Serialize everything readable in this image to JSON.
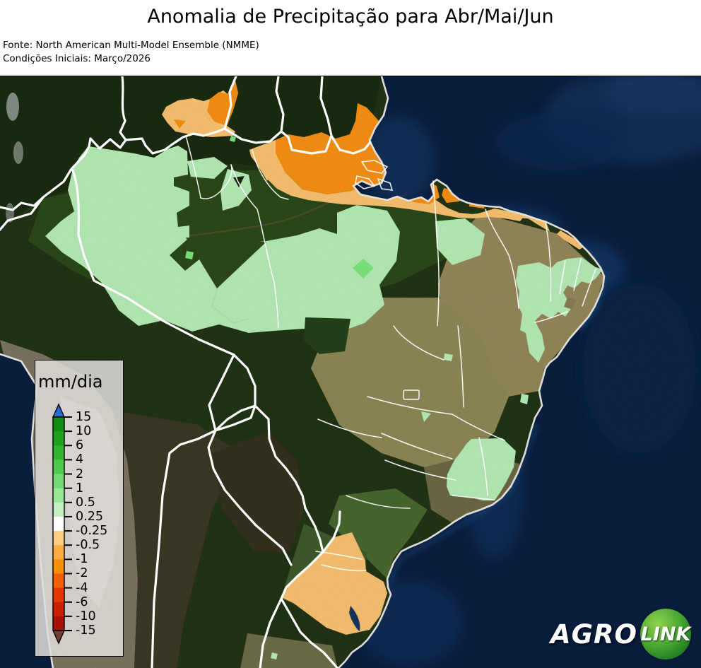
{
  "header": {
    "title": "Anomalia de Precipitação para Abr/Mai/Jun",
    "source_line1": "Fonte: North American Multi-Model Ensemble (NMME)",
    "source_line2": "Condições Iniciais: Março/2026"
  },
  "legend": {
    "unit_label": "mm/dia",
    "tick_labels": [
      "15",
      "10",
      "6",
      "4",
      "2",
      "1",
      "0.5",
      "0.25",
      "-0.25",
      "-0.5",
      "-1",
      "-2",
      "-4",
      "-6",
      "-10",
      "-15"
    ],
    "segment_colors": [
      "#108c10",
      "#1da01d",
      "#32b432",
      "#4fc84f",
      "#74d874",
      "#99e699",
      "#c2f0c2",
      "#ffffff",
      "#fdcc85",
      "#fdab43",
      "#fb8c07",
      "#f26005",
      "#e03a04",
      "#c62104",
      "#a51104"
    ],
    "over_arrow_color": "#2a6ad4",
    "under_arrow_color": "#6e4036"
  },
  "map": {
    "base_colors": {
      "ocean": "#0a1f40",
      "land": "#223416",
      "border": "#ffffff"
    },
    "overlay_colors": {
      "pos_low": "#b9f0b9",
      "pos_mid": "#7ee87e",
      "neg_low": "#fdc572",
      "neg_mid": "#fb9214"
    }
  },
  "logo": {
    "agro": "AGRO",
    "link": "LINK"
  },
  "chart_data": {
    "type": "choropleth-map",
    "title": "Anomalia de Precipitação para Abr/Mai/Jun",
    "units": "mm/dia",
    "colorbar_ticks": [
      15,
      10,
      6,
      4,
      2,
      1,
      0.5,
      0.25,
      -0.25,
      -0.5,
      -1,
      -2,
      -4,
      -6,
      -10,
      -15
    ],
    "colorbar_extends": {
      "over": ">15 (blue)",
      "under": "<-15 (dark brown-red)"
    },
    "regions": [
      {
        "area": "western and central Amazon",
        "anomaly_mm_dia": "0.25 to 0.5"
      },
      {
        "area": "small patches south of Roraima",
        "anomaly_mm_dia": "0.25 to 0.5"
      },
      {
        "area": "Maranhão / Piauí interior",
        "anomaly_mm_dia": "0.25 to 0.5"
      },
      {
        "area": "Northeast interior (CE/RN/PB/PE/BA)",
        "anomaly_mm_dia": "0.25 to 0.5"
      },
      {
        "area": "eastern Minas Gerais / Espírito Santo",
        "anomaly_mm_dia": "0.25 to 0.5"
      },
      {
        "area": "small spots central Brazil and lower Amazon",
        "anomaly_mm_dia": "0.5 to 1"
      },
      {
        "area": "Venezuela / Roraima border",
        "anomaly_mm_dia": "-0.5 to -2"
      },
      {
        "area": "Guyanas, Amapá and north coast strip",
        "anomaly_mm_dia": "-0.5 to -2"
      },
      {
        "area": "Rio Grande do Sul / Santa Catarina",
        "anomaly_mm_dia": "-0.25 to -0.5"
      }
    ]
  }
}
